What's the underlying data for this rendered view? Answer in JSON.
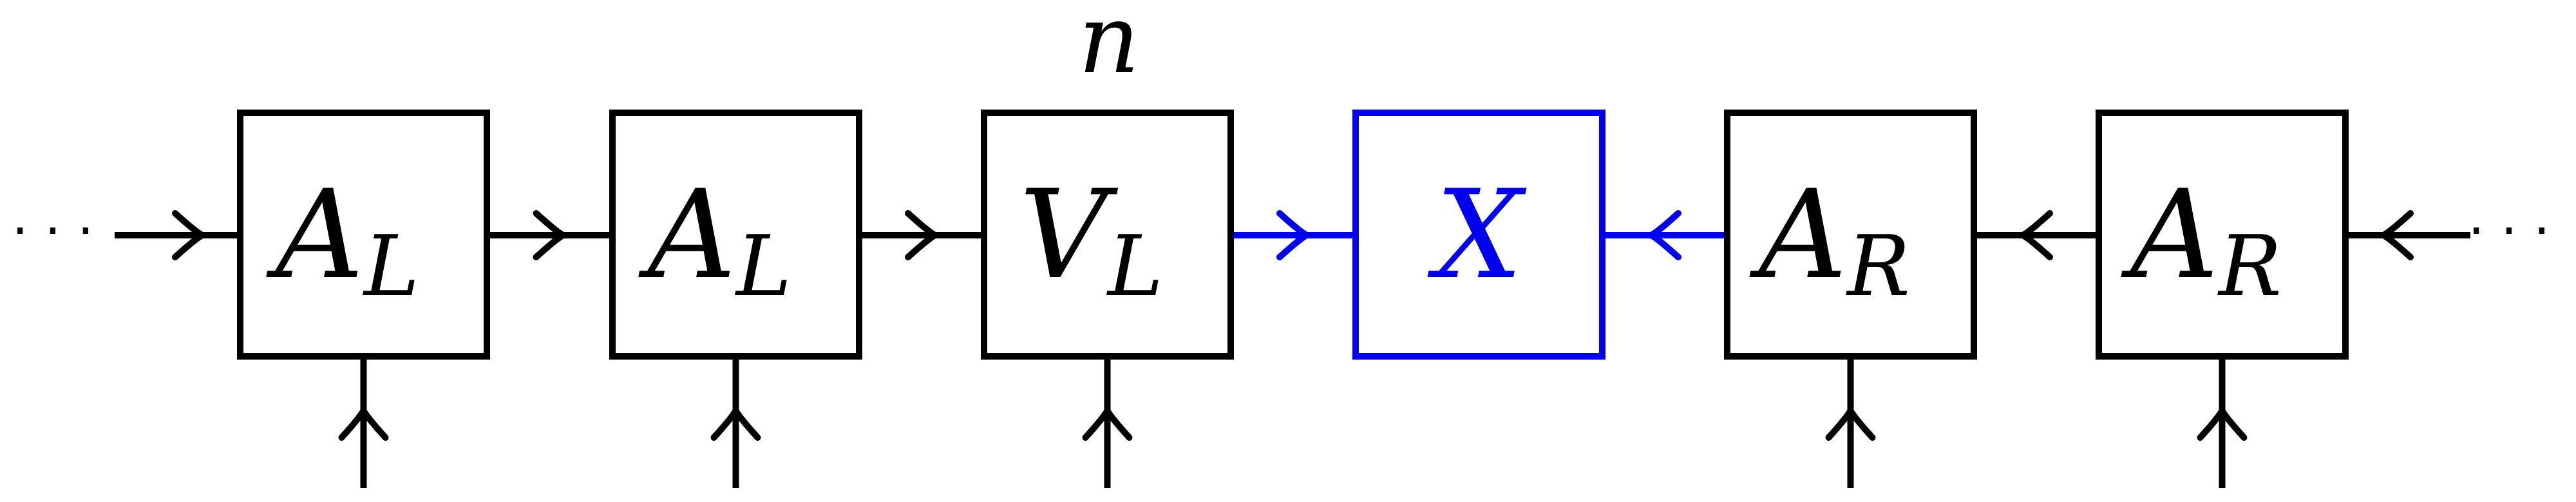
{
  "diagram": {
    "colors": {
      "ink": "#000000",
      "accent": "#0000ee"
    },
    "above_label": "n",
    "left_ellipsis": "· · ·",
    "right_ellipsis": "· · ·",
    "tensors": [
      {
        "id": "AL1",
        "base": "A",
        "sub": "L",
        "accent": false,
        "physical_leg": true
      },
      {
        "id": "AL2",
        "base": "A",
        "sub": "L",
        "accent": false,
        "physical_leg": true
      },
      {
        "id": "VL",
        "base": "V",
        "sub": "L",
        "accent": false,
        "physical_leg": true
      },
      {
        "id": "X",
        "base": "X",
        "sub": "",
        "accent": true,
        "physical_leg": false
      },
      {
        "id": "AR1",
        "base": "A",
        "sub": "R",
        "accent": false,
        "physical_leg": true
      },
      {
        "id": "AR2",
        "base": "A",
        "sub": "R",
        "accent": false,
        "physical_leg": true
      }
    ],
    "bonds": [
      {
        "from": "left-open",
        "to": "AL1",
        "arrow": "right",
        "accent": false
      },
      {
        "from": "AL1",
        "to": "AL2",
        "arrow": "right",
        "accent": false
      },
      {
        "from": "AL2",
        "to": "VL",
        "arrow": "right",
        "accent": false
      },
      {
        "from": "VL",
        "to": "X",
        "arrow": "right",
        "accent": true
      },
      {
        "from": "X",
        "to": "AR1",
        "arrow": "left",
        "accent": true
      },
      {
        "from": "AR1",
        "to": "AR2",
        "arrow": "left",
        "accent": false
      },
      {
        "from": "AR2",
        "to": "right-open",
        "arrow": "left",
        "accent": false
      }
    ]
  }
}
